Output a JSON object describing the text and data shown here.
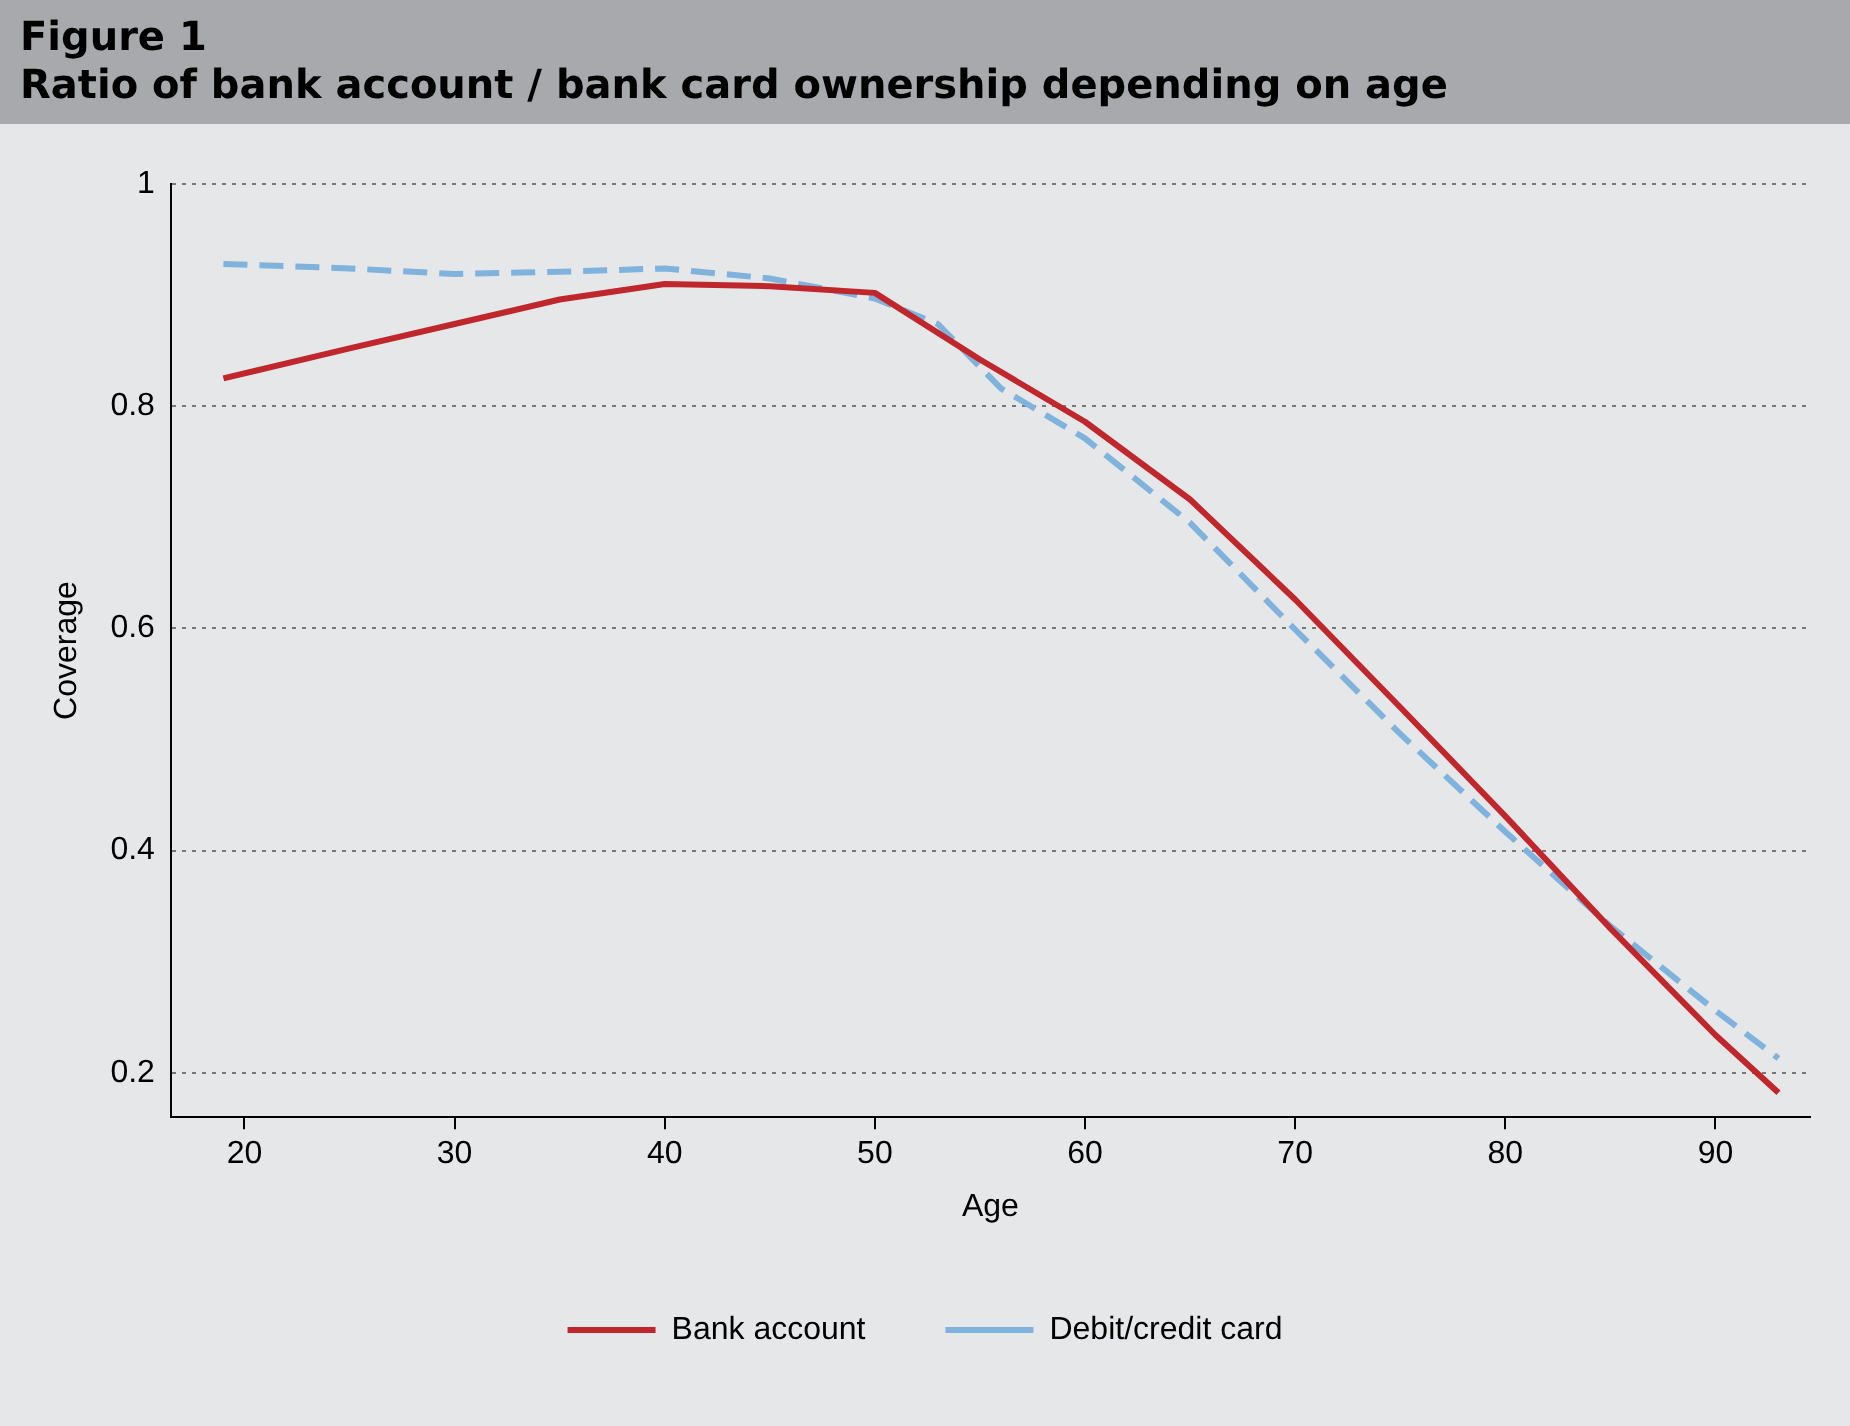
{
  "chart_data": {
    "type": "line",
    "title": "Figure 1",
    "subtitle": "Ratio of bank account / bank card ownership depending on age",
    "xlabel": "Age",
    "ylabel": "Coverage",
    "xlim": [
      16.5,
      94.5
    ],
    "xticks": [
      20,
      30,
      40,
      50,
      60,
      70,
      80,
      90
    ],
    "ylim": [
      0.16,
      1
    ],
    "yticks": [
      0.2,
      0.4,
      0.6,
      0.8,
      1
    ],
    "grid": "y",
    "legend": "bottom",
    "marker": "none",
    "series": [
      {
        "name": "Bank account",
        "color": "#c0272d",
        "line_style": "solid",
        "x": [
          19,
          25,
          30,
          35,
          40,
          45,
          50,
          55,
          60,
          65,
          70,
          75,
          80,
          85,
          90,
          93
        ],
        "values": [
          0.825,
          0.852,
          0.874,
          0.896,
          0.91,
          0.908,
          0.902,
          0.842,
          0.786,
          0.716,
          0.626,
          0.529,
          0.431,
          0.33,
          0.234,
          0.182
        ]
      },
      {
        "name": "Debit/credit card",
        "color": "#7fb2dc",
        "line_style": "dashed",
        "x": [
          19,
          25,
          30,
          35,
          40,
          45,
          50,
          53,
          56,
          60,
          65,
          70,
          75,
          80,
          85,
          90,
          93
        ],
        "values": [
          0.928,
          0.924,
          0.919,
          0.921,
          0.924,
          0.915,
          0.897,
          0.874,
          0.816,
          0.771,
          0.695,
          0.599,
          0.505,
          0.417,
          0.332,
          0.256,
          0.213
        ]
      }
    ]
  }
}
